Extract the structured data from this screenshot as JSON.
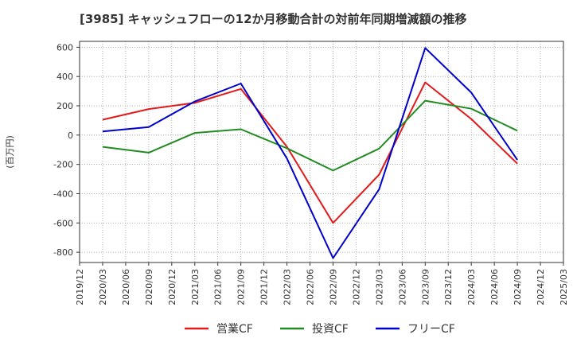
{
  "chart_data": {
    "type": "line",
    "title": "[3985]  キャッシュフローの12か月移動合計の対前年同期増減額の推移",
    "ylabel": "(百万円)",
    "xlabel": "",
    "ylim": [
      -870,
      640
    ],
    "yticks": [
      600,
      400,
      200,
      0,
      -200,
      -400,
      -600,
      -800
    ],
    "categories": [
      "2019/12",
      "2020/03",
      "2020/06",
      "2020/09",
      "2020/12",
      "2021/03",
      "2021/06",
      "2021/09",
      "2021/12",
      "2022/03",
      "2022/06",
      "2022/09",
      "2022/12",
      "2023/03",
      "2023/06",
      "2023/09",
      "2023/12",
      "2024/03",
      "2024/06",
      "2024/09",
      "2024/12",
      "2025/03"
    ],
    "grid": true,
    "legend_position": "bottom",
    "series": [
      {
        "name": "営業CF",
        "color": "#e31a1c",
        "points": [
          {
            "x": "2020/03",
            "y": 105
          },
          {
            "x": "2020/09",
            "y": 178
          },
          {
            "x": "2021/03",
            "y": 220
          },
          {
            "x": "2021/09",
            "y": 315
          },
          {
            "x": "2022/03",
            "y": -80
          },
          {
            "x": "2022/09",
            "y": -600
          },
          {
            "x": "2023/03",
            "y": -270
          },
          {
            "x": "2023/09",
            "y": 360
          },
          {
            "x": "2024/03",
            "y": 110
          },
          {
            "x": "2024/09",
            "y": -195
          }
        ]
      },
      {
        "name": "投資CF",
        "color": "#228b22",
        "points": [
          {
            "x": "2020/03",
            "y": -80
          },
          {
            "x": "2020/09",
            "y": -120
          },
          {
            "x": "2021/03",
            "y": 15
          },
          {
            "x": "2021/09",
            "y": 40
          },
          {
            "x": "2022/03",
            "y": -90
          },
          {
            "x": "2022/09",
            "y": -242
          },
          {
            "x": "2023/03",
            "y": -92
          },
          {
            "x": "2023/09",
            "y": 235
          },
          {
            "x": "2024/03",
            "y": 180
          },
          {
            "x": "2024/09",
            "y": 30
          }
        ]
      },
      {
        "name": "フリーCF",
        "color": "#0000cc",
        "points": [
          {
            "x": "2020/03",
            "y": 25
          },
          {
            "x": "2020/09",
            "y": 55
          },
          {
            "x": "2021/03",
            "y": 230
          },
          {
            "x": "2021/09",
            "y": 352
          },
          {
            "x": "2022/03",
            "y": -160
          },
          {
            "x": "2022/09",
            "y": -840
          },
          {
            "x": "2023/03",
            "y": -370
          },
          {
            "x": "2023/09",
            "y": 595
          },
          {
            "x": "2024/03",
            "y": 290
          },
          {
            "x": "2024/09",
            "y": -170
          }
        ]
      }
    ]
  }
}
